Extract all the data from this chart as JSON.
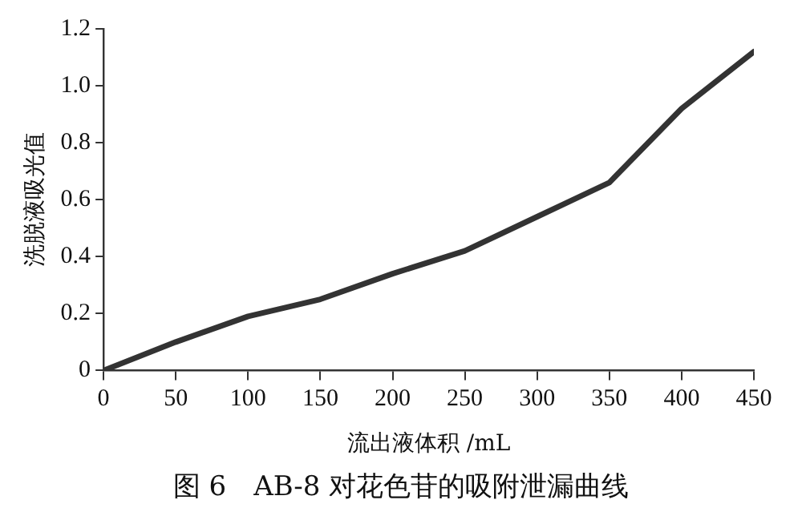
{
  "chart_data": {
    "type": "line",
    "title": "图 6　AB-8 对花色苷的吸附泄漏曲线",
    "xlabel": "流出液体积 /mL",
    "ylabel": "洗脱液吸光值",
    "x": [
      0,
      50,
      100,
      150,
      200,
      250,
      300,
      350,
      400,
      450
    ],
    "series": [
      {
        "color": "#333333",
        "values": [
          0,
          0.1,
          0.19,
          0.25,
          0.34,
          0.42,
          0.54,
          0.66,
          0.92,
          1.12
        ]
      }
    ],
    "xlim": [
      0,
      450
    ],
    "xticks": [
      0,
      50,
      100,
      150,
      200,
      250,
      300,
      350,
      400,
      450
    ],
    "ylim": [
      0,
      1.2
    ],
    "yticks": [
      0,
      0.2,
      0.4,
      0.6,
      0.8,
      {
        "value": 1,
        "label": "1.0"
      },
      1.2
    ],
    "grid": false,
    "legend": false,
    "marker": "none",
    "line_style": "solid"
  }
}
